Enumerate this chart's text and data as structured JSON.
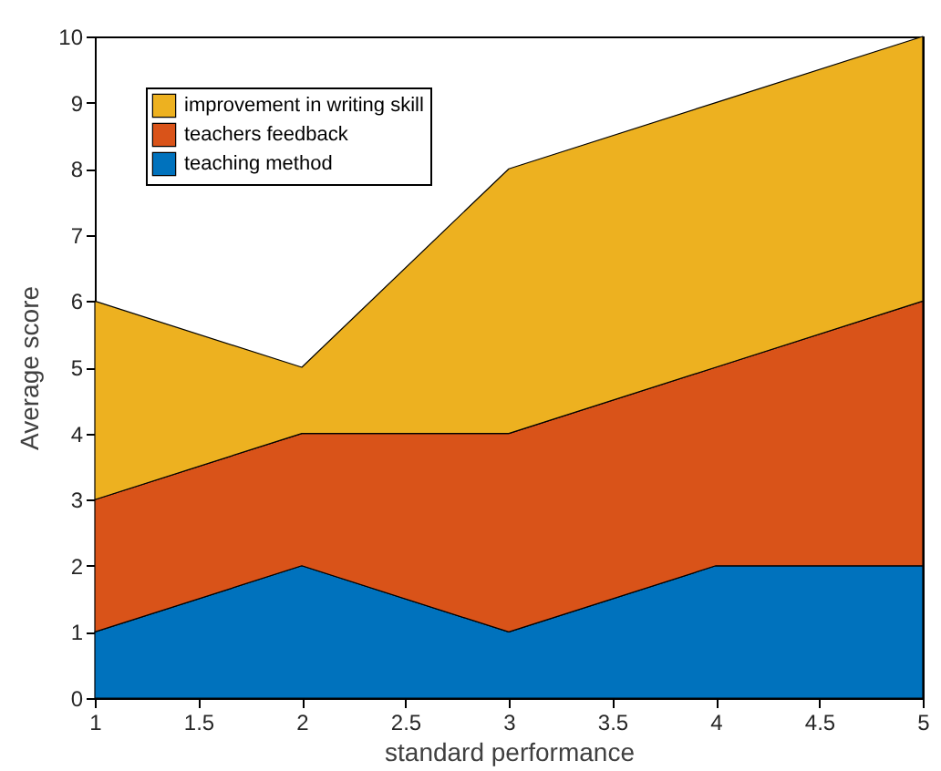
{
  "chart_data": {
    "type": "area",
    "stacked": true,
    "x": [
      1,
      2,
      3,
      4,
      5
    ],
    "xlabel": "standard performance",
    "ylabel": "Average score",
    "xlim": [
      1,
      5
    ],
    "xticks": [
      1,
      1.5,
      2,
      2.5,
      3,
      3.5,
      4,
      4.5,
      5
    ],
    "ylim": [
      0,
      10
    ],
    "yticks": [
      0,
      1,
      2,
      3,
      4,
      5,
      6,
      7,
      8,
      9,
      10
    ],
    "legend": "top left",
    "series": [
      {
        "name": "teaching method",
        "color": "#0072bd",
        "values": [
          1,
          2,
          1,
          2,
          2
        ]
      },
      {
        "name": "teachers feedback",
        "color": "#d95319",
        "values": [
          2,
          2,
          3,
          3,
          4
        ]
      },
      {
        "name": "improvement in writing skill",
        "color": "#edb120",
        "values": [
          3,
          1,
          4,
          4,
          4
        ]
      }
    ]
  }
}
